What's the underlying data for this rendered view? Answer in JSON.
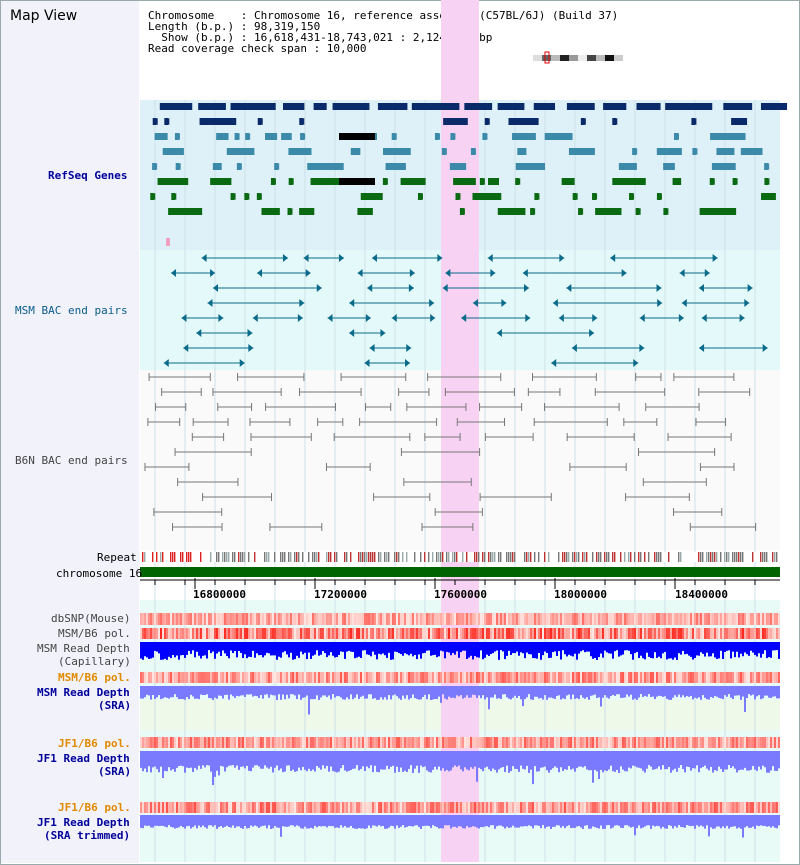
{
  "page": {
    "title": "Map View",
    "info": {
      "chromosome_line": "Chromosome    : Chromosome 16, reference assembly (C57BL/6J) (Build 37)",
      "length_line": "Length (b.p.) : 98,319,150",
      "show_line": "  Show (b.p.) : 16,618,431-18,743,021 : 2,124,591 bp",
      "span_line": "Read coverage check span : 10,000"
    }
  },
  "tracks": {
    "refseq": "RefSeq Genes",
    "msm_bac": "MSM BAC end pairs",
    "b6n_bac": "B6N BAC end pairs",
    "repeat": "Repeat",
    "chromosome": "chromosome 16",
    "dbsnp": "dbSNP(Mouse)",
    "msm_b6_pol_1": "MSM/B6 pol.",
    "msm_read_depth_cap_1": "MSM Read Depth",
    "msm_read_depth_cap_2": "(Capillary)",
    "msm_b6_pol_2": "MSM/B6 pol.",
    "msm_read_depth_sra_1": "MSM Read Depth",
    "msm_read_depth_sra_2": "(SRA)",
    "jf1_b6_pol_1": "JF1/B6 pol.",
    "jf1_read_depth_sra_1": "JF1 Read Depth",
    "jf1_read_depth_sra_2": "(SRA)",
    "jf1_b6_pol_2": "JF1/B6 pol.",
    "jf1_read_depth_trim_1": "JF1 Read Depth",
    "jf1_read_depth_trim_2": "(SRA trimmed)"
  },
  "axis": {
    "ticks": [
      "16800000",
      "17200000",
      "17600000",
      "18000000",
      "18400000"
    ]
  },
  "colors": {
    "refseq_bg": "#def0f8",
    "bac_bg": "#e4fafa",
    "highlight": "#f8d8f4",
    "chromosome": "#006400",
    "depth_capillary": "#0000ff",
    "depth_sra": "#7a7aff"
  }
}
